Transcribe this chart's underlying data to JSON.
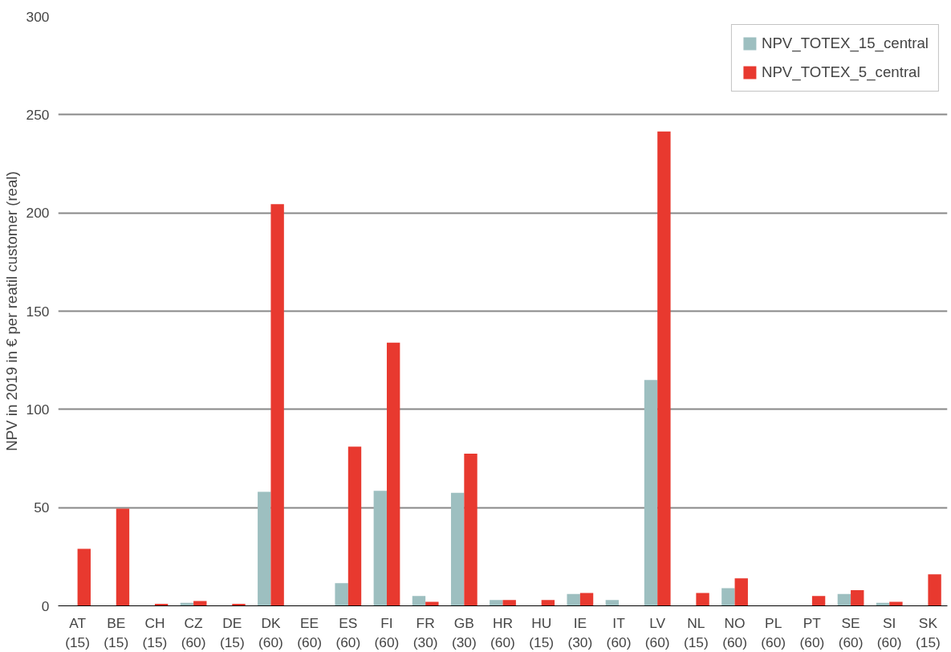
{
  "chart_data": {
    "type": "bar",
    "ylabel": "NPV in 2019 in € per reatil customer (real)",
    "categories": [
      "AT\n(15)",
      "BE\n(15)",
      "CH\n(15)",
      "CZ\n(60)",
      "DE\n(15)",
      "DK\n(60)",
      "EE\n(60)",
      "ES\n(60)",
      "FI\n(60)",
      "FR\n(30)",
      "GB\n(30)",
      "HR\n(60)",
      "HU\n(15)",
      "IE\n(30)",
      "IT\n(60)",
      "LV\n(60)",
      "NL\n(15)",
      "NO\n(60)",
      "PL\n(60)",
      "PT\n(60)",
      "SE\n(60)",
      "SI\n(60)",
      "SK\n(15)"
    ],
    "series": [
      {
        "name": "NPV_TOTEX_15_central",
        "color": "#9dbfc0",
        "values": [
          0,
          0,
          0,
          1.5,
          0,
          58,
          0,
          11.5,
          58.5,
          5,
          57.5,
          3,
          0,
          6,
          3,
          115,
          0,
          9,
          0,
          0,
          6,
          1.5,
          0
        ]
      },
      {
        "name": "NPV_TOTEX_5_central",
        "color": "#e8392f",
        "values": [
          29,
          49.5,
          1,
          2.5,
          1,
          204.5,
          0,
          81,
          134,
          2,
          77.5,
          3,
          3,
          6.5,
          0,
          241.5,
          6.5,
          14,
          0,
          5,
          8,
          2,
          16
        ]
      }
    ],
    "ylim": [
      0,
      300
    ],
    "yticks": [
      0,
      50,
      100,
      150,
      200,
      250,
      300
    ],
    "grid": "y",
    "legend": "top right"
  }
}
